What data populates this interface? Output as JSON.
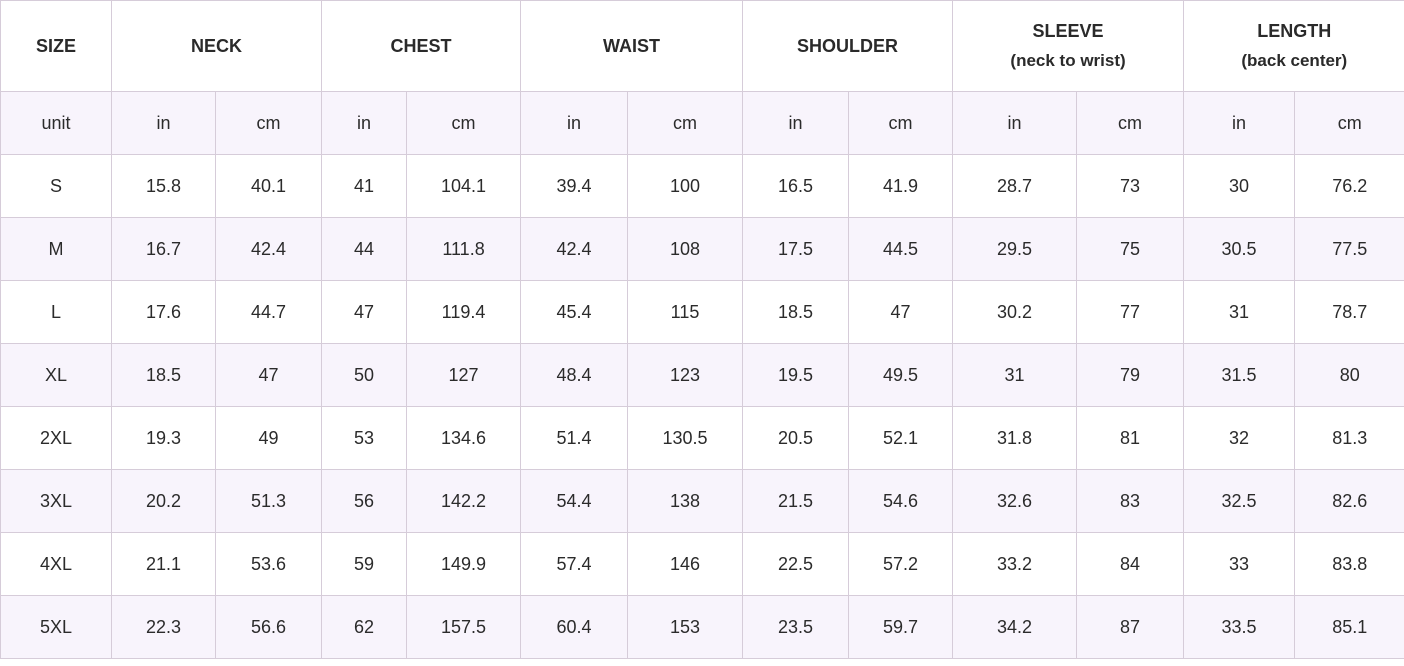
{
  "headers": {
    "size": "SIZE",
    "neck": "NECK",
    "chest": "CHEST",
    "waist": "WAIST",
    "shoulder": "SHOULDER",
    "sleeve": "SLEEVE",
    "sleeve_sub": "(neck to wrist)",
    "length": "LENGTH",
    "length_sub": "(back center)"
  },
  "units": {
    "label": "unit",
    "in": "in",
    "cm": "cm"
  },
  "rows": [
    {
      "size": "S",
      "values": [
        "15.8",
        "40.1",
        "41",
        "104.1",
        "39.4",
        "100",
        "16.5",
        "41.9",
        "28.7",
        "73",
        "30",
        "76.2"
      ]
    },
    {
      "size": "M",
      "values": [
        "16.7",
        "42.4",
        "44",
        "111.8",
        "42.4",
        "108",
        "17.5",
        "44.5",
        "29.5",
        "75",
        "30.5",
        "77.5"
      ]
    },
    {
      "size": "L",
      "values": [
        "17.6",
        "44.7",
        "47",
        "119.4",
        "45.4",
        "115",
        "18.5",
        "47",
        "30.2",
        "77",
        "31",
        "78.7"
      ]
    },
    {
      "size": "XL",
      "values": [
        "18.5",
        "47",
        "50",
        "127",
        "48.4",
        "123",
        "19.5",
        "49.5",
        "31",
        "79",
        "31.5",
        "80"
      ]
    },
    {
      "size": "2XL",
      "values": [
        "19.3",
        "49",
        "53",
        "134.6",
        "51.4",
        "130.5",
        "20.5",
        "52.1",
        "31.8",
        "81",
        "32",
        "81.3"
      ]
    },
    {
      "size": "3XL",
      "values": [
        "20.2",
        "51.3",
        "56",
        "142.2",
        "54.4",
        "138",
        "21.5",
        "54.6",
        "32.6",
        "83",
        "32.5",
        "82.6"
      ]
    },
    {
      "size": "4XL",
      "values": [
        "21.1",
        "53.6",
        "59",
        "149.9",
        "57.4",
        "146",
        "22.5",
        "57.2",
        "33.2",
        "84",
        "33",
        "83.8"
      ]
    },
    {
      "size": "5XL",
      "values": [
        "22.3",
        "56.6",
        "62",
        "157.5",
        "60.4",
        "153",
        "23.5",
        "59.7",
        "34.2",
        "87",
        "33.5",
        "85.1"
      ]
    }
  ]
}
